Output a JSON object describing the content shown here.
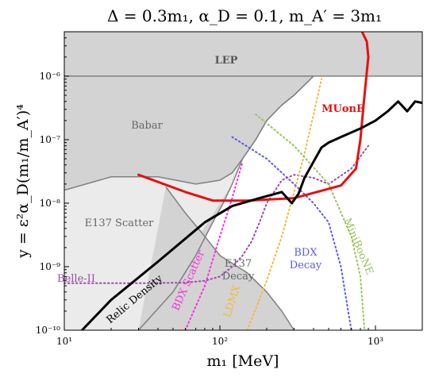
{
  "chart_data": {
    "type": "line",
    "title": "Δ = 0.3m₁, α_D = 0.1, m_A′ = 3m₁",
    "xlabel": "m₁ [MeV]",
    "ylabel": "y = ε²α_D(m₁/m_A′)⁴",
    "xscale": "log",
    "yscale": "log",
    "xlim": [
      10,
      2000
    ],
    "ylim": [
      1e-10,
      5e-06
    ],
    "x_ticks": [
      {
        "value": 10,
        "label": "10¹"
      },
      {
        "value": 100,
        "label": "10²"
      },
      {
        "value": 1000,
        "label": "10³"
      }
    ],
    "y_ticks": [
      {
        "value": 1e-10,
        "label": "10⁻¹⁰"
      },
      {
        "value": 1e-09,
        "label": "10⁻⁹"
      },
      {
        "value": 1e-08,
        "label": "10⁻⁸"
      },
      {
        "value": 1e-07,
        "label": "10⁻⁷"
      },
      {
        "value": 1e-06,
        "label": "10⁻⁶"
      }
    ],
    "excluded_regions": [
      {
        "name": "LEP",
        "label": "LEP",
        "color": "#d3d3d3",
        "edge": "#808080",
        "boundary": [
          [
            10,
            1e-06
          ],
          [
            2000,
            1e-06
          ]
        ]
      },
      {
        "name": "Babar",
        "label": "Babar",
        "color": "#d3d3d3",
        "edge": "#808080",
        "boundary": [
          [
            10,
            1.6e-08
          ],
          [
            20,
            2.6e-08
          ],
          [
            40,
            2.6e-08
          ],
          [
            70,
            2e-08
          ],
          [
            100,
            2.3e-08
          ],
          [
            120,
            3e-08
          ],
          [
            140,
            5e-08
          ],
          [
            170,
            1e-07
          ],
          [
            200,
            2e-07
          ],
          [
            250,
            3.5e-07
          ],
          [
            300,
            5e-07
          ],
          [
            400,
            1e-06
          ]
        ]
      },
      {
        "name": "E137 Scatter",
        "label": "E137 Scatter",
        "color": "#ebebeb",
        "edge": "#808080",
        "boundary": [
          [
            30,
            1e-10
          ],
          [
            50,
            4e-10
          ],
          [
            70,
            1.5e-09
          ],
          [
            90,
            5e-09
          ],
          [
            105,
            1e-08
          ],
          [
            120,
            2e-08
          ],
          [
            140,
            5e-08
          ],
          [
            170,
            1e-07
          ],
          [
            200,
            2e-07
          ],
          [
            250,
            3.5e-07
          ],
          [
            300,
            5e-07
          ],
          [
            400,
            1e-06
          ]
        ]
      },
      {
        "name": "E137 Decay",
        "label": "E137\nDecay",
        "color": "#d3d3d3",
        "edge": "#808080",
        "boundary": [
          [
            45,
            1.8e-08
          ],
          [
            60,
            7e-09
          ],
          [
            80,
            3e-09
          ],
          [
            100,
            1.5e-09
          ],
          [
            150,
            8e-10
          ],
          [
            200,
            4e-10
          ],
          [
            250,
            2e-10
          ],
          [
            300,
            1e-10
          ]
        ]
      }
    ],
    "projections": [
      {
        "name": "Belle-II",
        "label": "Belle-II",
        "color": "#9b4ba8",
        "style": "dotted",
        "x": [
          10,
          30,
          60,
          80,
          100,
          120,
          140,
          160,
          180,
          200,
          250,
          300,
          400,
          500,
          700,
          900
        ],
        "y": [
          5.5e-10,
          5.5e-10,
          5.6e-10,
          6e-10,
          7e-10,
          1e-09,
          1.5e-09,
          2.5e-09,
          5e-09,
          1e-08,
          2.3e-08,
          2.8e-08,
          2.5e-08,
          2e-08,
          3.5e-08,
          8e-08
        ]
      },
      {
        "name": "BDX Scatter",
        "label": "BDX Scatter",
        "color": "#ff2ee6",
        "style": "dotted",
        "x": [
          60,
          80,
          100,
          120,
          140
        ],
        "y": [
          1e-10,
          5e-10,
          3e-09,
          1.2e-08,
          4.5e-08
        ]
      },
      {
        "name": "LDMX",
        "label": "LDMX",
        "color": "#f6b73c",
        "style": "dotted",
        "x": [
          150,
          200,
          250,
          300,
          350,
          400,
          450
        ],
        "y": [
          1e-10,
          6e-10,
          3e-09,
          1.5e-08,
          6e-08,
          2.5e-07,
          9e-07
        ]
      },
      {
        "name": "BDX Decay",
        "label": "BDX\nDecay",
        "color": "#5a5ae6",
        "style": "dotted",
        "x": [
          120,
          200,
          300,
          400,
          500,
          600,
          650,
          700
        ],
        "y": [
          1.1e-07,
          5e-08,
          2e-08,
          1e-08,
          5e-09,
          1e-09,
          3e-10,
          1e-10
        ]
      },
      {
        "name": "MiniBooNE",
        "label": "MiniBooNE",
        "color": "#98c35a",
        "style": "dotted",
        "x": [
          170,
          300,
          500,
          700,
          800,
          850
        ],
        "y": [
          2.5e-07,
          8e-08,
          2e-08,
          3e-09,
          7e-10,
          1e-10
        ]
      },
      {
        "name": "MUonE",
        "label": "MUonE",
        "color": "#e81010",
        "style": "solid",
        "x": [
          30,
          60,
          90,
          150,
          300,
          600,
          750,
          800,
          850,
          900,
          880,
          820
        ],
        "y": [
          2.8e-08,
          1.5e-08,
          1.1e-08,
          1.1e-08,
          1.2e-08,
          1.9e-08,
          3.5e-08,
          1e-07,
          5e-07,
          2e-06,
          3.5e-06,
          5e-06
        ]
      },
      {
        "name": "Relic Density",
        "label": "Relic Density",
        "color": "#000000",
        "style": "solid",
        "x": [
          13,
          20,
          40,
          80,
          120,
          180,
          250,
          290,
          320,
          350,
          400,
          450,
          500,
          600,
          800,
          1000,
          1200,
          1400,
          1600,
          1800,
          2000
        ],
        "y": [
          1e-10,
          3e-10,
          1.2e-09,
          5e-09,
          9e-09,
          1.2e-08,
          1.5e-08,
          1e-08,
          1.4e-08,
          2.5e-08,
          4.5e-08,
          7.5e-08,
          9e-08,
          1.1e-07,
          1.5e-07,
          2e-07,
          2.8e-07,
          4e-07,
          2.8e-07,
          4e-07,
          3.8e-07
        ]
      }
    ]
  }
}
